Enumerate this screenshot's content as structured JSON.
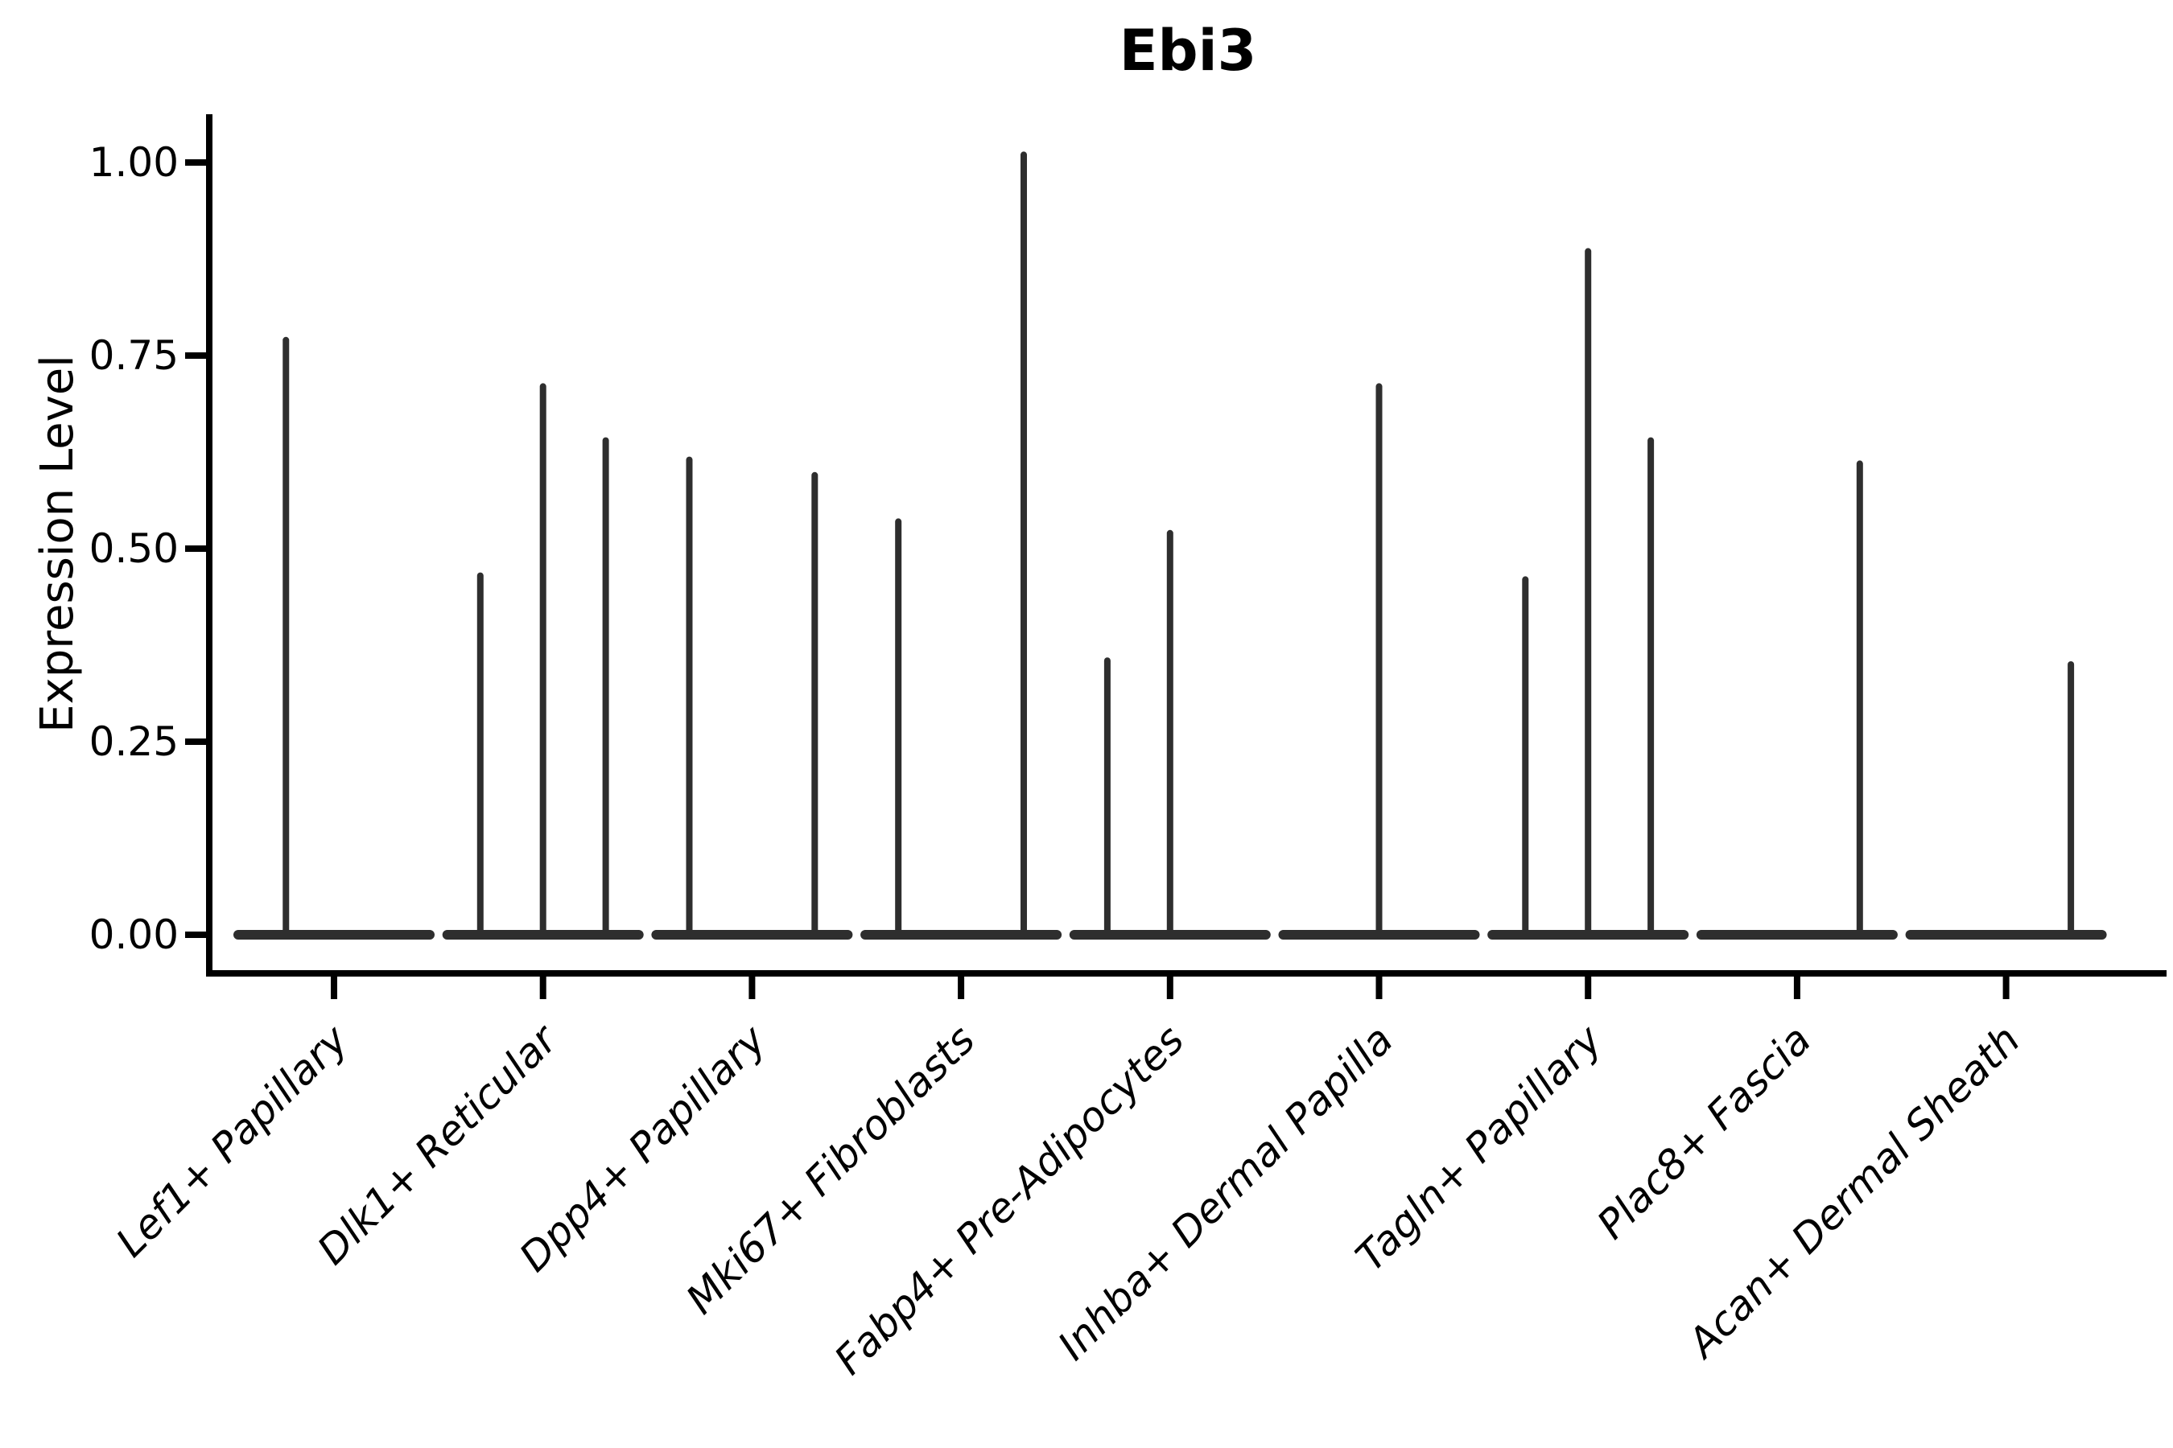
{
  "figure": {
    "title": "Ebi3",
    "y_axis_label": "Expression Level"
  },
  "chart_data": {
    "type": "violin",
    "title": "Ebi3",
    "xlabel": "",
    "ylabel": "Expression Level",
    "categories": [
      "Lef1+ Papillary",
      "Dlk1+ Reticular",
      "Dpp4+ Papillary",
      "Mki67+ Fibroblasts",
      "Fabp4+ Pre-Adipocytes",
      "Inhba+ Dermal Papilla",
      "Tagln+ Papillary",
      "Plac8+ Fascia",
      "Acan+ Dermal Sheath"
    ],
    "ylim": [
      0.0,
      1.0625
    ],
    "yticks": [
      1.0,
      0.75,
      0.5,
      0.25,
      0.0
    ],
    "ytick_labels": [
      "1.00",
      "0.75",
      "0.50",
      "0.25",
      "0.00"
    ],
    "grid": false,
    "legend": "none",
    "violin_style": "flat-zero-baseline-with-narrow-spikes",
    "series": [
      {
        "category": "Lef1+ Papillary",
        "baseline": 0.0,
        "spikes": [
          {
            "offset": -0.23,
            "value": 0.77
          }
        ]
      },
      {
        "category": "Dlk1+ Reticular",
        "baseline": 0.0,
        "spikes": [
          {
            "offset": -0.3,
            "value": 0.465
          },
          {
            "offset": 0.0,
            "value": 0.71
          },
          {
            "offset": 0.3,
            "value": 0.64
          }
        ]
      },
      {
        "category": "Dpp4+ Papillary",
        "baseline": 0.0,
        "spikes": [
          {
            "offset": -0.3,
            "value": 0.615
          },
          {
            "offset": 0.3,
            "value": 0.595
          }
        ]
      },
      {
        "category": "Mki67+ Fibroblasts",
        "baseline": 0.0,
        "spikes": [
          {
            "offset": -0.3,
            "value": 0.535
          },
          {
            "offset": 0.3,
            "value": 1.01
          }
        ]
      },
      {
        "category": "Fabp4+ Pre-Adipocytes",
        "baseline": 0.0,
        "spikes": [
          {
            "offset": -0.3,
            "value": 0.355
          },
          {
            "offset": 0.0,
            "value": 0.52
          }
        ]
      },
      {
        "category": "Inhba+ Dermal Papilla",
        "baseline": 0.0,
        "spikes": [
          {
            "offset": 0.0,
            "value": 0.71
          }
        ]
      },
      {
        "category": "Tagln+ Papillary",
        "baseline": 0.0,
        "spikes": [
          {
            "offset": -0.3,
            "value": 0.46
          },
          {
            "offset": 0.0,
            "value": 0.885
          },
          {
            "offset": 0.3,
            "value": 0.64
          }
        ]
      },
      {
        "category": "Plac8+ Fascia",
        "baseline": 0.0,
        "spikes": [
          {
            "offset": 0.3,
            "value": 0.61
          }
        ]
      },
      {
        "category": "Acan+ Dermal Sheath",
        "baseline": 0.0,
        "spikes": [
          {
            "offset": 0.31,
            "value": 0.35
          }
        ]
      }
    ],
    "colors": {
      "violin_stroke": "#2e2e2e",
      "axis": "#000000",
      "text": "#000000",
      "background": "#ffffff"
    }
  }
}
